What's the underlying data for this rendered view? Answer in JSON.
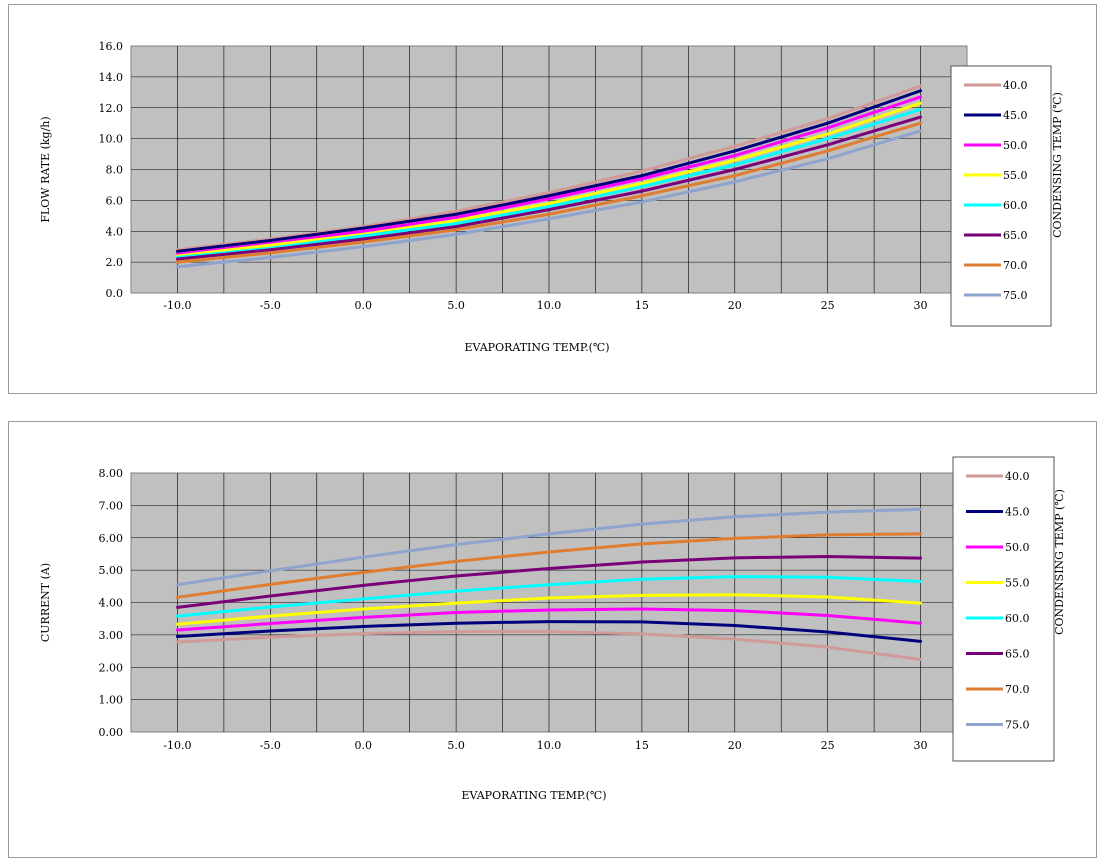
{
  "chart_data": [
    {
      "type": "line",
      "xlabel": "EVAPORATING TEMP.(℃)",
      "ylabel": "FLOW RATE (kg/h)",
      "legend_title": "CONDENSING TEMP (℃)",
      "legend_position": "right",
      "grid": true,
      "x_ticks": [
        "-10.0",
        "-5.0",
        "0.0",
        "5.0",
        "10.0",
        "15",
        "20",
        "25",
        "30"
      ],
      "y_ticks": [
        "0.0",
        "2.0",
        "4.0",
        "6.0",
        "8.0",
        "10.0",
        "12.0",
        "14.0",
        "16.0"
      ],
      "xlim": [
        -12.5,
        32.5
      ],
      "ylim": [
        0,
        16
      ],
      "x": [
        -10,
        -5,
        0,
        5,
        10,
        15,
        20,
        25,
        30
      ],
      "series": [
        {
          "name": "40.0",
          "color": "#d09a98",
          "values": [
            2.8,
            3.5,
            4.3,
            5.3,
            6.5,
            7.9,
            9.5,
            11.3,
            13.4
          ]
        },
        {
          "name": "45.0",
          "color": "#00007a",
          "values": [
            2.7,
            3.4,
            4.2,
            5.1,
            6.3,
            7.6,
            9.2,
            11.0,
            13.1
          ]
        },
        {
          "name": "50.0",
          "color": "#ff00ff",
          "values": [
            2.5,
            3.2,
            4.0,
            4.9,
            6.1,
            7.4,
            8.9,
            10.7,
            12.7
          ]
        },
        {
          "name": "55.0",
          "color": "#ffff00",
          "values": [
            2.4,
            3.1,
            3.8,
            4.7,
            5.8,
            7.1,
            8.6,
            10.3,
            12.3
          ]
        },
        {
          "name": "60.0",
          "color": "#00ffff",
          "values": [
            2.3,
            2.9,
            3.7,
            4.5,
            5.6,
            6.9,
            8.3,
            10.0,
            11.9
          ]
        },
        {
          "name": "65.0",
          "color": "#7a007a",
          "values": [
            2.2,
            2.8,
            3.5,
            4.3,
            5.4,
            6.6,
            8.0,
            9.6,
            11.4
          ]
        },
        {
          "name": "70.0",
          "color": "#e07c30",
          "values": [
            2.0,
            2.6,
            3.3,
            4.1,
            5.1,
            6.3,
            7.6,
            9.2,
            11.0
          ]
        },
        {
          "name": "75.0",
          "color": "#8fa4cc",
          "values": [
            1.7,
            2.3,
            3.0,
            3.8,
            4.8,
            5.9,
            7.2,
            8.7,
            10.5
          ]
        }
      ]
    },
    {
      "type": "line",
      "xlabel": "EVAPORATING TEMP.(℃)",
      "ylabel": "CURRENT (A)",
      "legend_title": "CONDENSING TEMP (℃)",
      "legend_position": "right",
      "grid": true,
      "x_ticks": [
        "-10.0",
        "-5.0",
        "0.0",
        "5.0",
        "10.0",
        "15",
        "20",
        "25",
        "30"
      ],
      "y_ticks": [
        "0.00",
        "1.00",
        "2.00",
        "3.00",
        "4.00",
        "5.00",
        "6.00",
        "7.00",
        "8.00"
      ],
      "xlim": [
        -12.5,
        32.5
      ],
      "ylim": [
        0,
        8
      ],
      "x": [
        -10,
        -5,
        0,
        5,
        10,
        15,
        20,
        25,
        30
      ],
      "series": [
        {
          "name": "40.0",
          "color": "#d09a98",
          "values": [
            2.78,
            2.93,
            3.04,
            3.1,
            3.1,
            3.03,
            2.87,
            2.62,
            2.24
          ]
        },
        {
          "name": "45.0",
          "color": "#00007a",
          "values": [
            2.95,
            3.12,
            3.26,
            3.36,
            3.41,
            3.4,
            3.29,
            3.09,
            2.8
          ]
        },
        {
          "name": "50.0",
          "color": "#ff00ff",
          "values": [
            3.15,
            3.35,
            3.54,
            3.69,
            3.77,
            3.8,
            3.75,
            3.6,
            3.36
          ]
        },
        {
          "name": "55.0",
          "color": "#ffff00",
          "values": [
            3.33,
            3.58,
            3.8,
            3.98,
            4.14,
            4.22,
            4.24,
            4.17,
            3.98
          ]
        },
        {
          "name": "60.0",
          "color": "#00ffff",
          "values": [
            3.58,
            3.86,
            4.11,
            4.35,
            4.55,
            4.72,
            4.8,
            4.78,
            4.65
          ]
        },
        {
          "name": "65.0",
          "color": "#7a007a",
          "values": [
            3.85,
            4.2,
            4.53,
            4.82,
            5.05,
            5.25,
            5.38,
            5.42,
            5.37
          ]
        },
        {
          "name": "70.0",
          "color": "#e07c30",
          "values": [
            4.16,
            4.56,
            4.93,
            5.27,
            5.56,
            5.81,
            5.98,
            6.09,
            6.12
          ]
        },
        {
          "name": "75.0",
          "color": "#8fa4cc",
          "values": [
            4.55,
            4.98,
            5.4,
            5.79,
            6.12,
            6.42,
            6.65,
            6.79,
            6.88
          ]
        }
      ]
    }
  ]
}
